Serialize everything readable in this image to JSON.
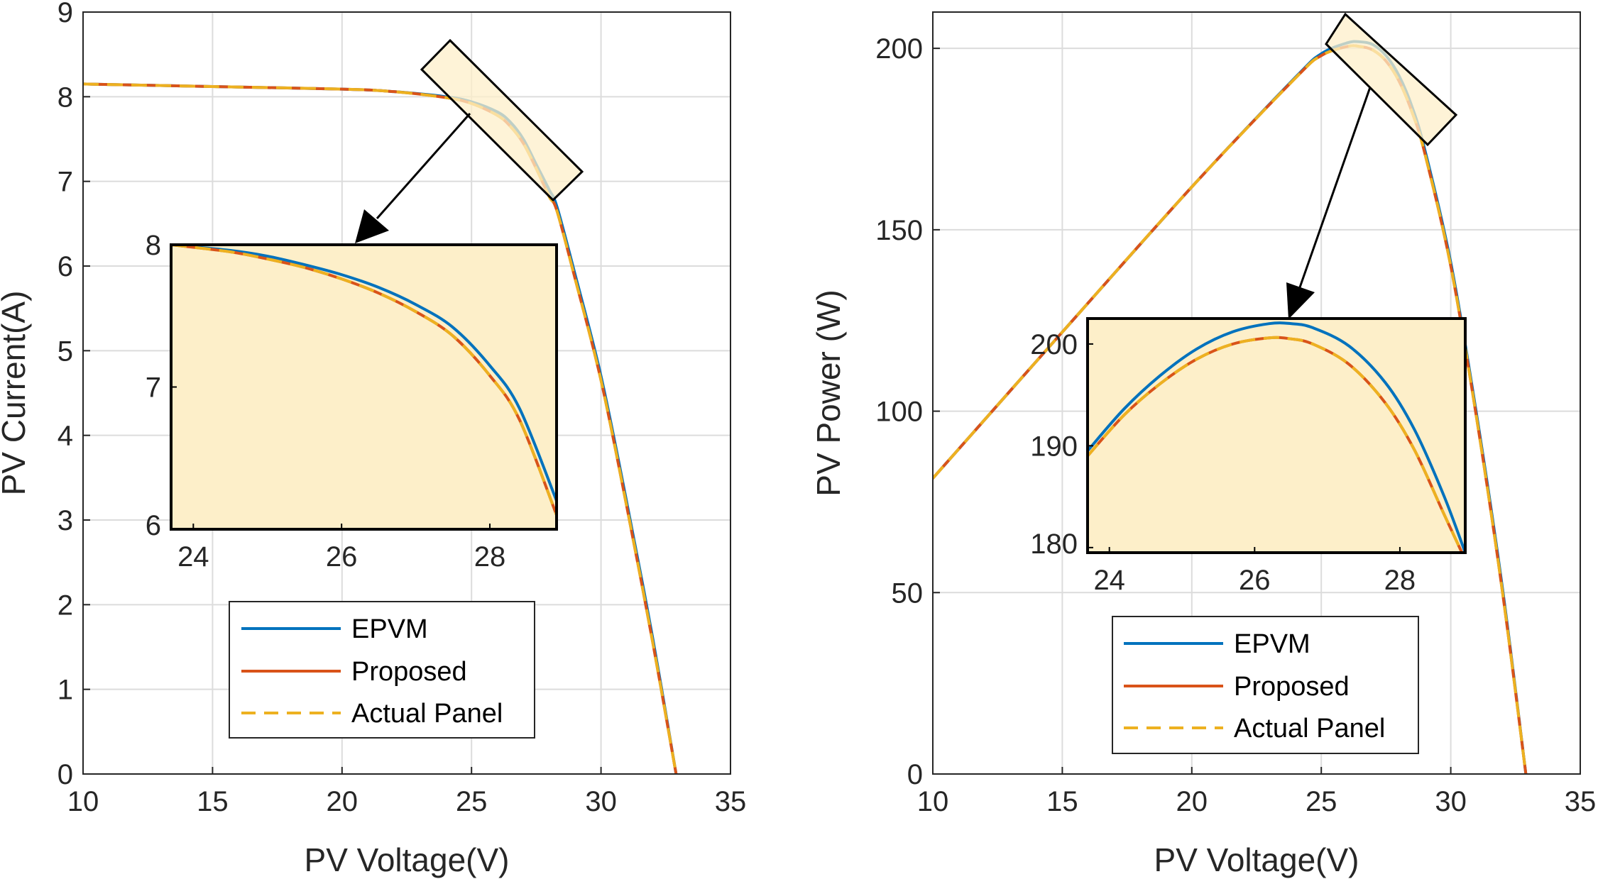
{
  "colors": {
    "epvm": "#0072BD",
    "proposed": "#D95319",
    "actual": "#EDB120",
    "inset_bg": "#FDEFC9",
    "grid": "#dcdcdc",
    "axis": "#262626"
  },
  "chart_data": [
    {
      "id": "left",
      "type": "line",
      "xlabel": "PV Voltage(V)",
      "ylabel": "PV Current(A)",
      "xlim": [
        10,
        35
      ],
      "ylim": [
        0,
        9
      ],
      "xticks": [
        10,
        15,
        20,
        25,
        30,
        35
      ],
      "yticks": [
        0,
        1,
        2,
        3,
        4,
        5,
        6,
        7,
        8,
        9
      ],
      "grid": true,
      "legend": {
        "placement": "lower-center",
        "entries": [
          {
            "key": "epvm",
            "label": "EPVM",
            "style": "solid"
          },
          {
            "key": "proposed",
            "label": "Proposed",
            "style": "solid"
          },
          {
            "key": "actual",
            "label": "Actual Panel",
            "style": "dashed"
          }
        ]
      },
      "series": [
        {
          "key": "epvm",
          "name": "EPVM",
          "x": [
            10,
            15,
            20,
            22,
            24,
            25,
            26,
            26.5,
            27,
            27.5,
            28,
            28.3,
            29,
            30,
            31,
            32,
            32.9
          ],
          "y": [
            8.15,
            8.12,
            8.09,
            8.06,
            8.0,
            7.94,
            7.82,
            7.7,
            7.5,
            7.2,
            6.9,
            6.7,
            5.9,
            4.7,
            3.2,
            1.6,
            0
          ]
        },
        {
          "key": "proposed",
          "name": "Proposed",
          "x": [
            10,
            15,
            20,
            22,
            24,
            25,
            26,
            26.5,
            27,
            27.5,
            28,
            28.3,
            29,
            30,
            31,
            32,
            32.9
          ],
          "y": [
            8.15,
            8.12,
            8.09,
            8.06,
            7.99,
            7.92,
            7.78,
            7.65,
            7.45,
            7.15,
            6.82,
            6.65,
            5.85,
            4.65,
            3.15,
            1.55,
            0
          ]
        },
        {
          "key": "actual",
          "name": "Actual Panel",
          "x": [
            10,
            15,
            20,
            22,
            24,
            25,
            26,
            26.5,
            27,
            27.5,
            28,
            28.3,
            29,
            30,
            31,
            32,
            32.9
          ],
          "y": [
            8.15,
            8.12,
            8.09,
            8.06,
            7.99,
            7.92,
            7.78,
            7.65,
            7.45,
            7.15,
            6.82,
            6.65,
            5.85,
            4.65,
            3.15,
            1.55,
            0
          ]
        }
      ],
      "zoom_region": {
        "x": [
          24.7,
          28.3
        ],
        "y": [
          6.7,
          8.0
        ]
      },
      "inset": {
        "xlim": [
          23.7,
          28.9
        ],
        "ylim": [
          6,
          8
        ],
        "xticks": [
          24,
          26,
          28
        ],
        "yticks": [
          6,
          7,
          8
        ],
        "series": [
          {
            "key": "epvm",
            "x": [
              23.7,
              24.5,
              25.0,
              25.5,
              26.0,
              26.5,
              27.0,
              27.5,
              28.0,
              28.4,
              28.9
            ],
            "y": [
              8.0,
              7.96,
              7.92,
              7.86,
              7.79,
              7.7,
              7.58,
              7.42,
              7.15,
              6.85,
              6.2
            ]
          },
          {
            "key": "proposed",
            "x": [
              23.7,
              24.5,
              25.0,
              25.5,
              26.0,
              26.5,
              27.0,
              27.5,
              28.0,
              28.4,
              28.9
            ],
            "y": [
              8.0,
              7.95,
              7.9,
              7.84,
              7.76,
              7.66,
              7.53,
              7.36,
              7.08,
              6.77,
              6.1
            ]
          },
          {
            "key": "actual",
            "x": [
              23.7,
              24.5,
              25.0,
              25.5,
              26.0,
              26.5,
              27.0,
              27.5,
              28.0,
              28.4,
              28.9
            ],
            "y": [
              8.0,
              7.95,
              7.9,
              7.84,
              7.76,
              7.66,
              7.53,
              7.36,
              7.08,
              6.77,
              6.1
            ]
          }
        ]
      }
    },
    {
      "id": "right",
      "type": "line",
      "xlabel": "PV Voltage(V)",
      "ylabel": "PV Power (W)",
      "xlim": [
        10,
        35
      ],
      "ylim": [
        0,
        210
      ],
      "xticks": [
        10,
        15,
        20,
        25,
        30,
        35
      ],
      "yticks": [
        0,
        50,
        100,
        150,
        200
      ],
      "grid": true,
      "legend": {
        "placement": "lower-center",
        "entries": [
          {
            "key": "epvm",
            "label": "EPVM",
            "style": "solid"
          },
          {
            "key": "proposed",
            "label": "Proposed",
            "style": "solid"
          },
          {
            "key": "actual",
            "label": "Actual Panel",
            "style": "dashed"
          }
        ]
      },
      "series": [
        {
          "key": "epvm",
          "name": "EPVM",
          "x": [
            10,
            15,
            20,
            24,
            25,
            26,
            26.5,
            27,
            27.5,
            28,
            28.5,
            29,
            30,
            31,
            32,
            32.9
          ],
          "y": [
            81.5,
            121.8,
            161.8,
            192,
            198.5,
            201.5,
            201.8,
            201,
            198,
            192.5,
            184,
            172,
            141,
            99,
            51,
            0
          ]
        },
        {
          "key": "proposed",
          "name": "Proposed",
          "x": [
            10,
            15,
            20,
            24,
            25,
            26,
            26.5,
            27,
            27.5,
            28,
            28.5,
            29,
            30,
            31,
            32,
            32.9
          ],
          "y": [
            81.5,
            121.8,
            161.8,
            191.8,
            198,
            200.5,
            200.5,
            199.5,
            196.5,
            191,
            182.5,
            171,
            140,
            98,
            50,
            0
          ]
        },
        {
          "key": "actual",
          "name": "Actual Panel",
          "x": [
            10,
            15,
            20,
            24,
            25,
            26,
            26.5,
            27,
            27.5,
            28,
            28.5,
            29,
            30,
            31,
            32,
            32.9
          ],
          "y": [
            81.5,
            121.8,
            161.8,
            191.8,
            198,
            200.5,
            200.5,
            199.5,
            196.5,
            191,
            182.5,
            171,
            140,
            98,
            50,
            0
          ]
        }
      ],
      "zoom_region": {
        "x": [
          25.2,
          29.0
        ],
        "y": [
          172,
          203
        ]
      },
      "inset": {
        "xlim": [
          23.7,
          28.9
        ],
        "ylim": [
          179.5,
          202.5
        ],
        "xticks": [
          24,
          26,
          28
        ],
        "yticks": [
          180,
          190,
          200
        ],
        "series": [
          {
            "key": "epvm",
            "x": [
              23.7,
              24.2,
              24.7,
              25.2,
              25.7,
              26.2,
              26.5,
              26.8,
              27.3,
              27.8,
              28.2,
              28.6,
              28.9
            ],
            "y": [
              189.5,
              193.6,
              196.9,
              199.5,
              201.2,
              202,
              202,
              201.6,
              199.8,
              196.2,
              191.6,
              185.2,
              179.5
            ]
          },
          {
            "key": "proposed",
            "x": [
              23.7,
              24.2,
              24.7,
              25.2,
              25.7,
              26.2,
              26.5,
              26.8,
              27.3,
              27.8,
              28.2,
              28.6,
              28.9
            ],
            "y": [
              189,
              193,
              196.1,
              198.5,
              200,
              200.6,
              200.5,
              200,
              198,
              194.2,
              189.6,
              183.4,
              178.8
            ]
          },
          {
            "key": "actual",
            "x": [
              23.7,
              24.2,
              24.7,
              25.2,
              25.7,
              26.2,
              26.5,
              26.8,
              27.3,
              27.8,
              28.2,
              28.6,
              28.9
            ],
            "y": [
              189,
              193,
              196.1,
              198.5,
              200,
              200.6,
              200.5,
              200,
              198,
              194.2,
              189.6,
              183.4,
              178.8
            ]
          }
        ]
      }
    }
  ]
}
